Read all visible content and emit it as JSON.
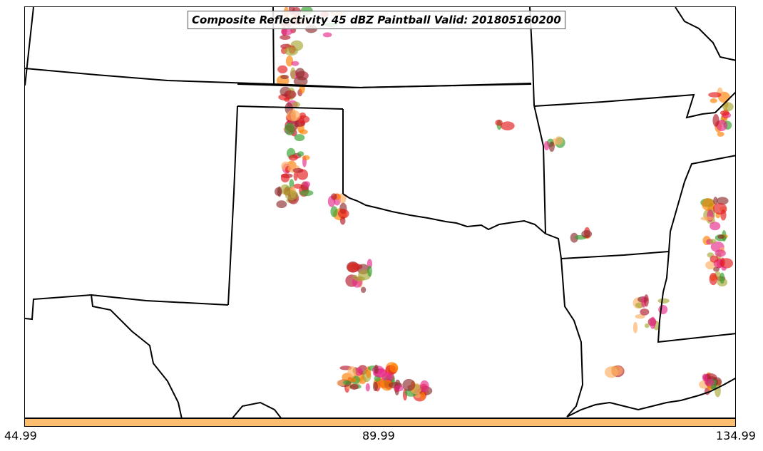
{
  "title": "Composite Reflectivity 45 dBZ Paintball Valid: 201805160200",
  "colorbar": {
    "color": "#fdbf6f",
    "tick_labels": [
      "44.99",
      "89.99",
      "134.99"
    ]
  },
  "paintball_colors": [
    "#e31a1c",
    "#ff7f00",
    "#33a02c",
    "#b2182b",
    "#fdae61",
    "#a6a635",
    "#8c2d2d",
    "#e7298a"
  ],
  "map": {
    "boundary_color": "#000000",
    "background": "#ffffff"
  }
}
